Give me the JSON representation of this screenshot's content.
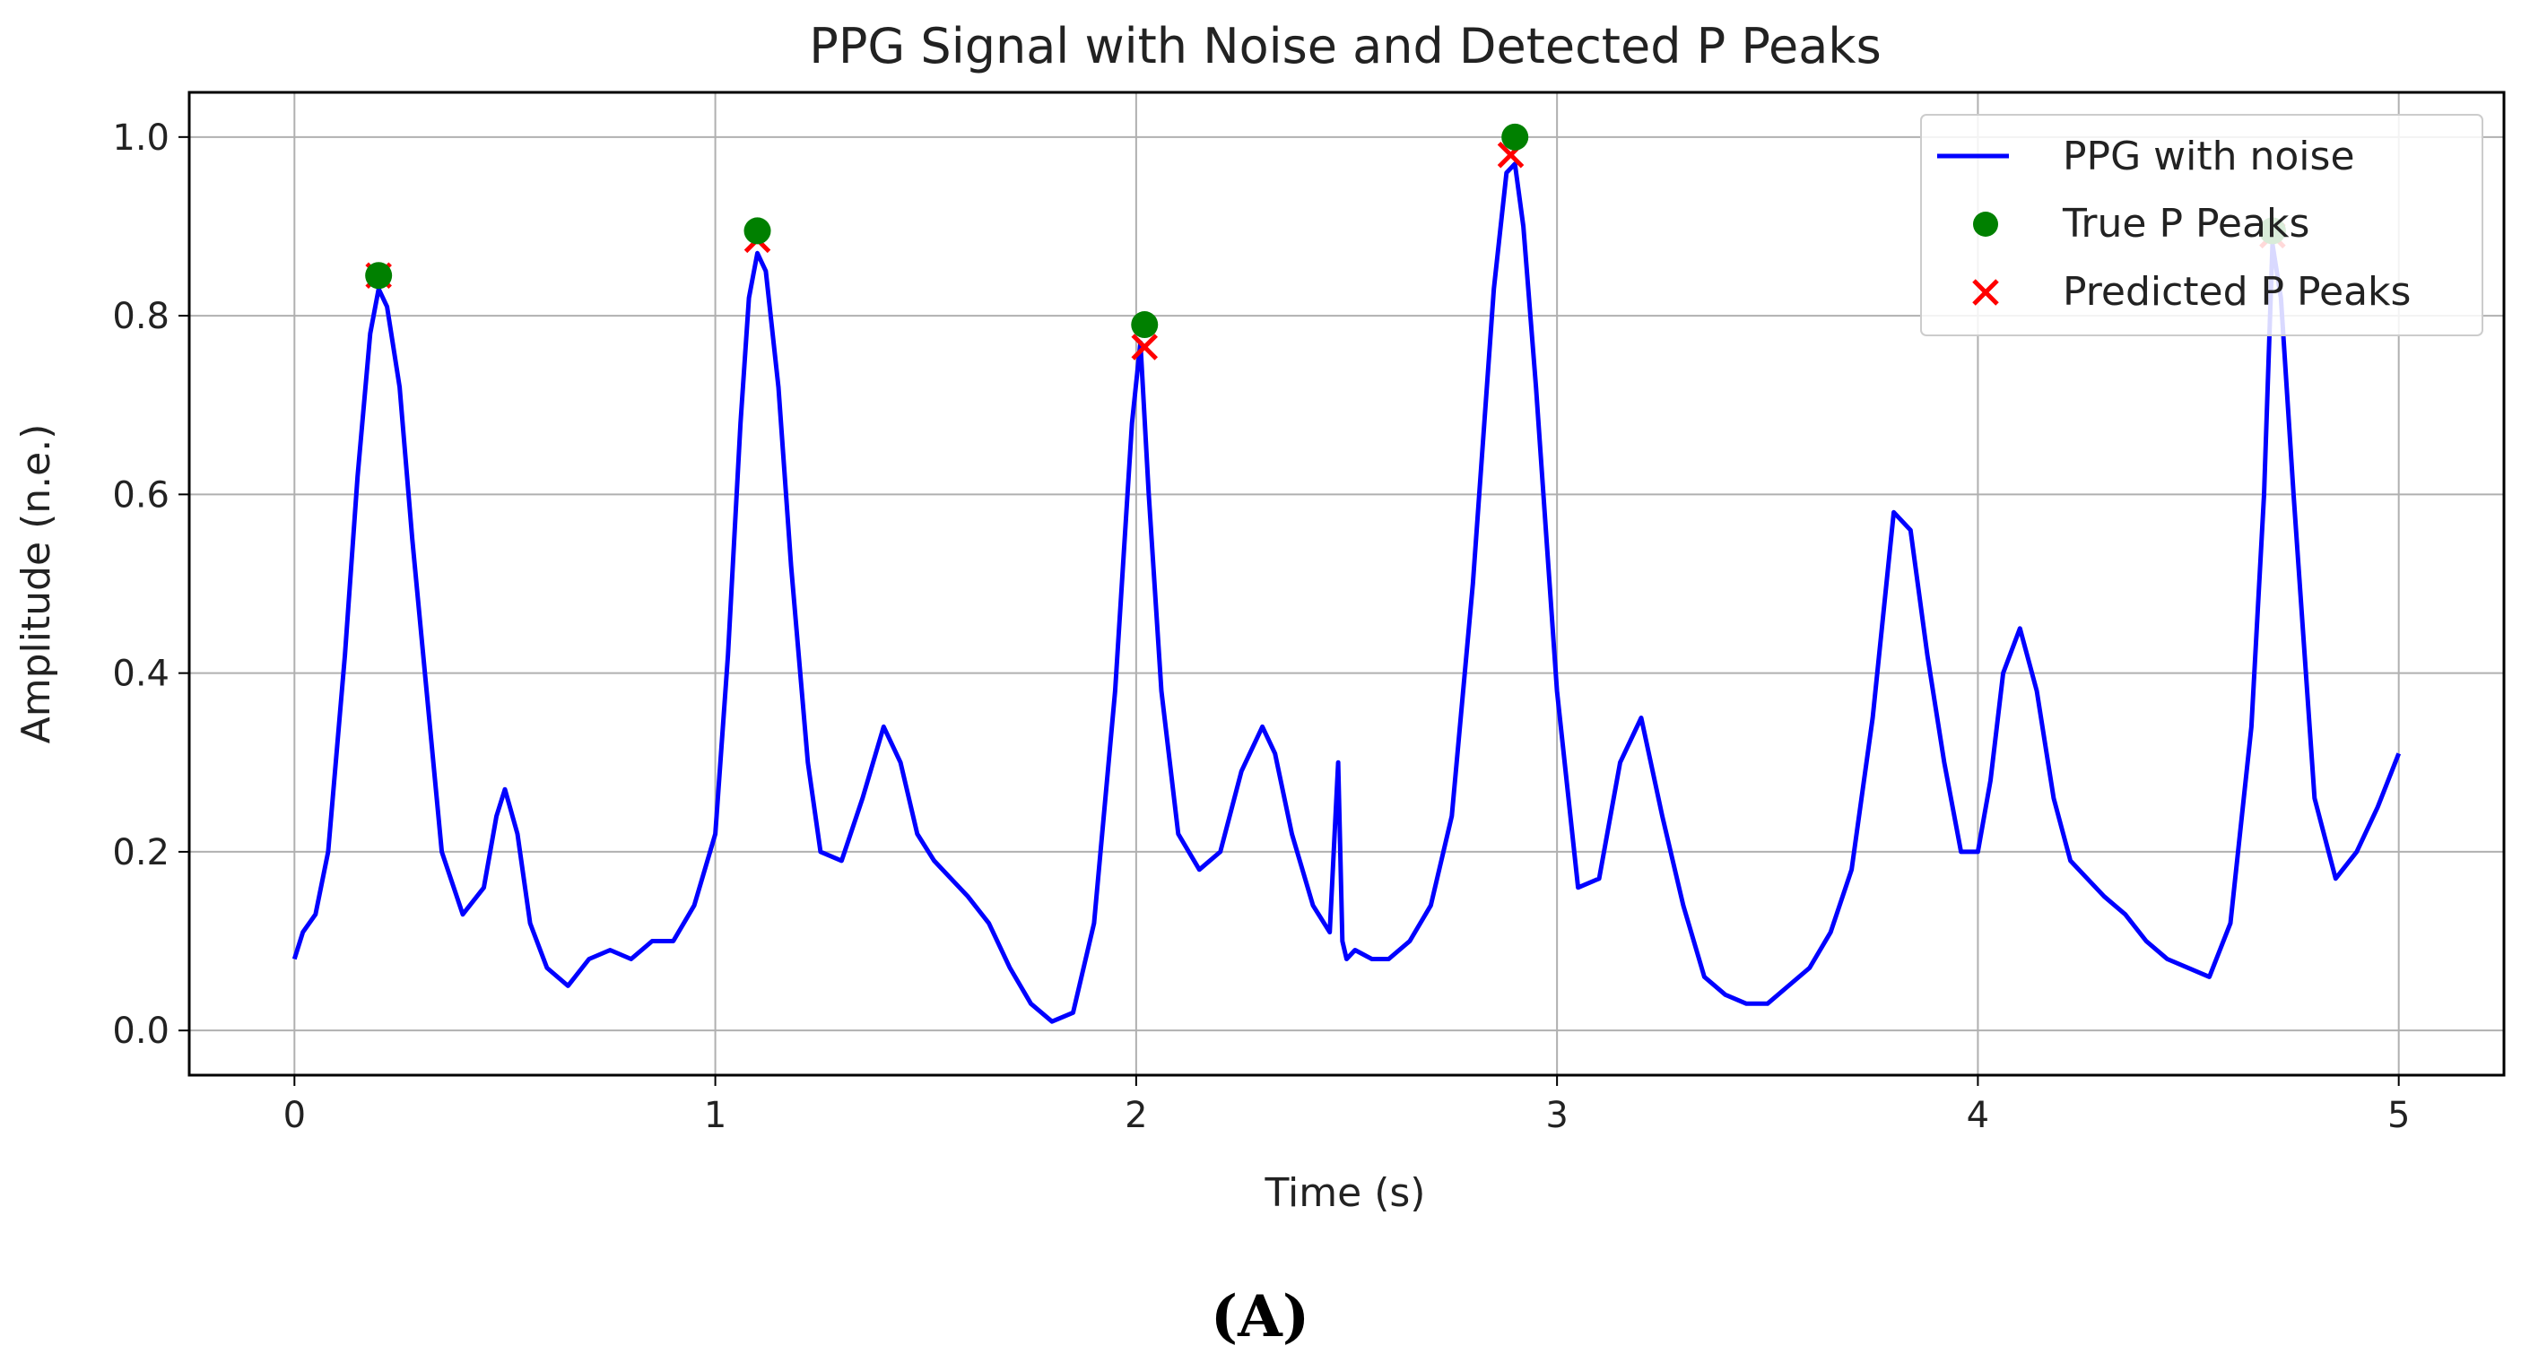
{
  "panel_label": "(A)",
  "colors": {
    "signal": "#0000ff",
    "true_peaks": "#008000",
    "predicted_peaks": "#ff0000",
    "grid": "#b0b0b0",
    "axes": "#000000"
  },
  "chart_data": {
    "type": "line",
    "title": "PPG Signal with Noise and Detected P Peaks",
    "xlabel": "Time (s)",
    "ylabel": "Amplitude (n.e.)",
    "xlim": [
      -0.25,
      5.25
    ],
    "ylim": [
      -0.05,
      1.05
    ],
    "xticks": [
      0,
      1,
      2,
      3,
      4,
      5
    ],
    "xtick_labels": [
      "0",
      "1",
      "2",
      "3",
      "4",
      "5"
    ],
    "yticks": [
      0.0,
      0.2,
      0.4,
      0.6,
      0.8,
      1.0
    ],
    "ytick_labels": [
      "0.0",
      "0.2",
      "0.4",
      "0.6",
      "0.8",
      "1.0"
    ],
    "grid": true,
    "legend_position": "top-right",
    "series": [
      {
        "name": "PPG with noise",
        "kind": "line",
        "x": [
          0,
          0.02,
          0.05,
          0.08,
          0.12,
          0.15,
          0.18,
          0.2,
          0.22,
          0.25,
          0.28,
          0.32,
          0.35,
          0.4,
          0.45,
          0.48,
          0.5,
          0.53,
          0.56,
          0.6,
          0.65,
          0.7,
          0.75,
          0.8,
          0.85,
          0.9,
          0.95,
          1.0,
          1.03,
          1.06,
          1.08,
          1.1,
          1.12,
          1.15,
          1.18,
          1.22,
          1.25,
          1.3,
          1.35,
          1.4,
          1.44,
          1.48,
          1.52,
          1.56,
          1.6,
          1.65,
          1.7,
          1.75,
          1.8,
          1.85,
          1.9,
          1.95,
          1.99,
          2.01,
          2.03,
          2.06,
          2.1,
          2.15,
          2.2,
          2.25,
          2.3,
          2.33,
          2.37,
          2.42,
          2.46,
          2.48,
          2.49,
          2.5,
          2.52,
          2.56,
          2.6,
          2.65,
          2.7,
          2.75,
          2.8,
          2.85,
          2.88,
          2.9,
          2.92,
          2.95,
          3.0,
          3.05,
          3.1,
          3.15,
          3.2,
          3.25,
          3.3,
          3.35,
          3.4,
          3.45,
          3.5,
          3.55,
          3.6,
          3.65,
          3.7,
          3.75,
          3.8,
          3.84,
          3.88,
          3.92,
          3.96,
          4.0,
          4.03,
          4.06,
          4.1,
          4.14,
          4.18,
          4.22,
          4.26,
          4.3,
          4.35,
          4.4,
          4.45,
          4.5,
          4.55,
          4.6,
          4.65,
          4.68,
          4.7,
          4.72,
          4.75,
          4.8,
          4.85,
          4.9,
          4.95,
          5.0
        ],
        "y": [
          0.08,
          0.11,
          0.13,
          0.2,
          0.42,
          0.62,
          0.78,
          0.83,
          0.81,
          0.72,
          0.55,
          0.35,
          0.2,
          0.13,
          0.16,
          0.24,
          0.27,
          0.22,
          0.12,
          0.07,
          0.05,
          0.08,
          0.09,
          0.08,
          0.1,
          0.1,
          0.14,
          0.22,
          0.42,
          0.68,
          0.82,
          0.87,
          0.85,
          0.72,
          0.52,
          0.3,
          0.2,
          0.19,
          0.26,
          0.34,
          0.3,
          0.22,
          0.19,
          0.17,
          0.15,
          0.12,
          0.07,
          0.03,
          0.01,
          0.02,
          0.12,
          0.38,
          0.68,
          0.77,
          0.6,
          0.38,
          0.22,
          0.18,
          0.2,
          0.29,
          0.34,
          0.31,
          0.22,
          0.14,
          0.11,
          0.3,
          0.1,
          0.08,
          0.09,
          0.08,
          0.08,
          0.1,
          0.14,
          0.24,
          0.5,
          0.83,
          0.96,
          0.97,
          0.9,
          0.72,
          0.38,
          0.16,
          0.17,
          0.3,
          0.35,
          0.24,
          0.14,
          0.06,
          0.04,
          0.03,
          0.03,
          0.05,
          0.07,
          0.11,
          0.18,
          0.35,
          0.58,
          0.56,
          0.42,
          0.3,
          0.2,
          0.2,
          0.28,
          0.4,
          0.45,
          0.38,
          0.26,
          0.19,
          0.17,
          0.15,
          0.13,
          0.1,
          0.08,
          0.07,
          0.06,
          0.12,
          0.34,
          0.6,
          0.88,
          0.82,
          0.6,
          0.26,
          0.17,
          0.2,
          0.25,
          0.31
        ]
      },
      {
        "name": "True P Peaks",
        "kind": "scatter-dot",
        "x": [
          0.2,
          1.1,
          2.02,
          2.9,
          4.7
        ],
        "y": [
          0.845,
          0.895,
          0.79,
          1.0,
          0.895
        ]
      },
      {
        "name": "Predicted P Peaks",
        "kind": "scatter-x",
        "x": [
          0.2,
          1.1,
          2.02,
          2.89,
          4.7
        ],
        "y": [
          0.845,
          0.885,
          0.765,
          0.98,
          0.89
        ]
      }
    ]
  }
}
